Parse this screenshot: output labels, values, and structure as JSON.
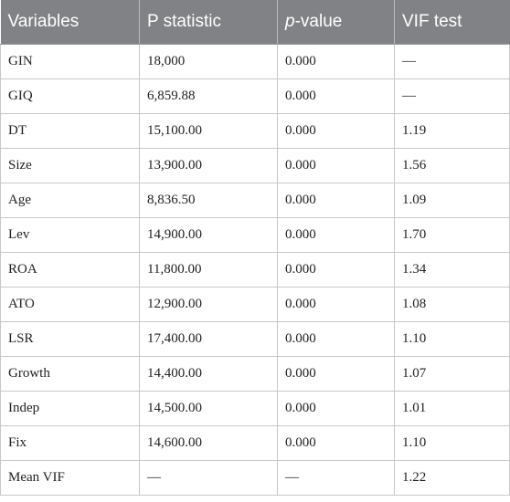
{
  "table": {
    "headers": {
      "variables": "Variables",
      "p_statistic": "P statistic",
      "pvalue_italic": "p",
      "pvalue_rest": "-value",
      "vif": "VIF test"
    },
    "rows": [
      {
        "variable": "GIN",
        "p_statistic": "18,000",
        "p_value": "0.000",
        "vif": "—"
      },
      {
        "variable": "GIQ",
        "p_statistic": "6,859.88",
        "p_value": "0.000",
        "vif": "—"
      },
      {
        "variable": "DT",
        "p_statistic": "15,100.00",
        "p_value": "0.000",
        "vif": "1.19"
      },
      {
        "variable": "Size",
        "p_statistic": "13,900.00",
        "p_value": "0.000",
        "vif": "1.56"
      },
      {
        "variable": "Age",
        "p_statistic": "8,836.50",
        "p_value": "0.000",
        "vif": "1.09"
      },
      {
        "variable": "Lev",
        "p_statistic": "14,900.00",
        "p_value": "0.000",
        "vif": "1.70"
      },
      {
        "variable": "ROA",
        "p_statistic": "11,800.00",
        "p_value": "0.000",
        "vif": "1.34"
      },
      {
        "variable": "ATO",
        "p_statistic": "12,900.00",
        "p_value": "0.000",
        "vif": "1.08"
      },
      {
        "variable": "LSR",
        "p_statistic": "17,400.00",
        "p_value": "0.000",
        "vif": "1.10"
      },
      {
        "variable": "Growth",
        "p_statistic": "14,400.00",
        "p_value": "0.000",
        "vif": "1.07"
      },
      {
        "variable": "Indep",
        "p_statistic": "14,500.00",
        "p_value": "0.000",
        "vif": "1.01"
      },
      {
        "variable": "Fix",
        "p_statistic": "14,600.00",
        "p_value": "0.000",
        "vif": "1.10"
      },
      {
        "variable": "Mean VIF",
        "p_statistic": "—",
        "p_value": "—",
        "vif": "1.22"
      }
    ]
  }
}
